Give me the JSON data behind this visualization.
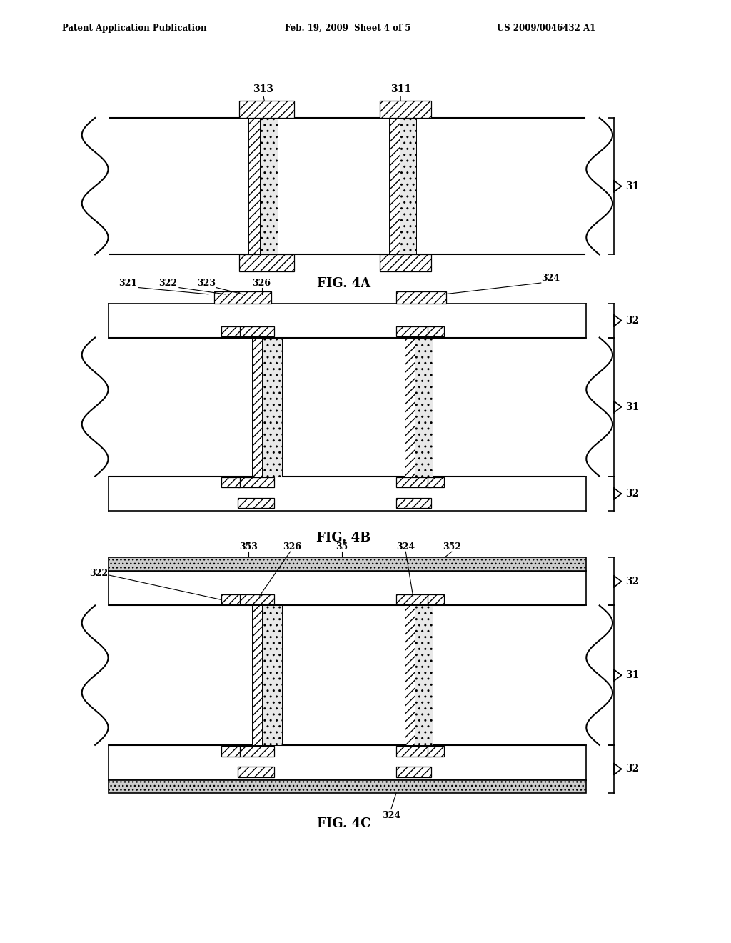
{
  "header_left": "Patent Application Publication",
  "header_mid": "Feb. 19, 2009  Sheet 4 of 5",
  "header_right": "US 2009/0046432 A1",
  "fig4a_caption": "FIG. 4A",
  "fig4b_caption": "FIG. 4B",
  "fig4c_caption": "FIG. 4C",
  "bg_color": "#ffffff",
  "line_color": "#000000"
}
